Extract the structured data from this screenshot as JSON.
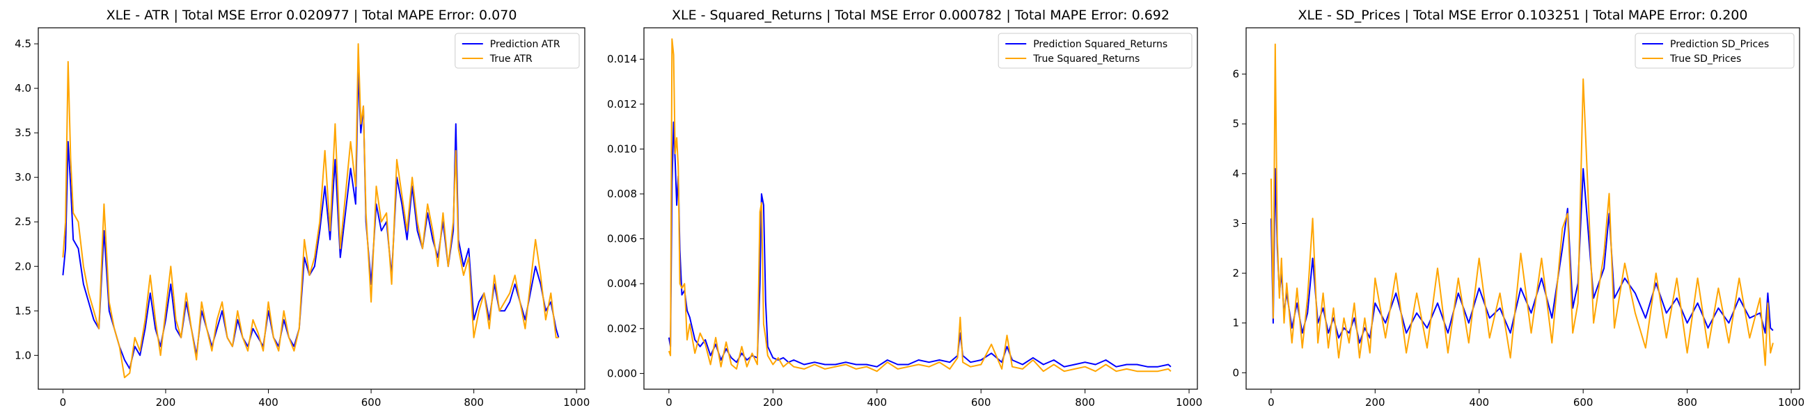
{
  "chart_data": [
    {
      "type": "line",
      "title": "XLE - ATR | Total MSE Error 0.020977 | Total MAPE Error: 0.070",
      "xlabel": "",
      "ylabel": "",
      "xlim": [
        -48,
        1016
      ],
      "ylim": [
        0.62,
        4.68
      ],
      "xticks": [
        0,
        200,
        400,
        600,
        800,
        1000
      ],
      "yticks": [
        1.0,
        1.5,
        2.0,
        2.5,
        3.0,
        3.5,
        4.0,
        4.5
      ],
      "ytick_format": "fixed1",
      "legend": "top-right",
      "grid": false,
      "series": [
        {
          "name": "Prediction ATR",
          "color": "#0000ff",
          "x": [
            0,
            5,
            10,
            15,
            20,
            30,
            40,
            50,
            60,
            70,
            80,
            90,
            100,
            110,
            120,
            130,
            140,
            150,
            160,
            170,
            180,
            190,
            200,
            210,
            220,
            230,
            240,
            250,
            260,
            270,
            280,
            290,
            300,
            310,
            320,
            330,
            340,
            350,
            360,
            370,
            380,
            390,
            400,
            410,
            420,
            430,
            440,
            450,
            460,
            470,
            480,
            490,
            500,
            510,
            520,
            530,
            540,
            550,
            560,
            570,
            575,
            580,
            585,
            590,
            600,
            610,
            620,
            630,
            640,
            650,
            660,
            670,
            680,
            690,
            700,
            710,
            720,
            730,
            740,
            750,
            760,
            765,
            770,
            780,
            790,
            800,
            810,
            820,
            830,
            840,
            850,
            860,
            870,
            880,
            890,
            900,
            910,
            920,
            930,
            940,
            950,
            960,
            965
          ],
          "y": [
            1.9,
            2.2,
            3.4,
            2.9,
            2.3,
            2.2,
            1.8,
            1.6,
            1.4,
            1.3,
            2.4,
            1.5,
            1.3,
            1.1,
            0.95,
            0.85,
            1.1,
            1.0,
            1.3,
            1.7,
            1.3,
            1.1,
            1.4,
            1.8,
            1.3,
            1.2,
            1.6,
            1.3,
            1.0,
            1.5,
            1.3,
            1.1,
            1.3,
            1.5,
            1.2,
            1.1,
            1.4,
            1.2,
            1.1,
            1.3,
            1.2,
            1.1,
            1.5,
            1.2,
            1.1,
            1.4,
            1.2,
            1.1,
            1.3,
            2.1,
            1.9,
            2.0,
            2.4,
            2.9,
            2.3,
            3.2,
            2.1,
            2.6,
            3.1,
            2.7,
            4.2,
            3.5,
            3.8,
            2.5,
            1.8,
            2.7,
            2.4,
            2.5,
            1.9,
            3.0,
            2.7,
            2.3,
            2.9,
            2.4,
            2.2,
            2.6,
            2.3,
            2.1,
            2.5,
            2.0,
            2.4,
            3.6,
            2.3,
            2.0,
            2.2,
            1.4,
            1.6,
            1.7,
            1.4,
            1.8,
            1.5,
            1.5,
            1.6,
            1.8,
            1.6,
            1.4,
            1.7,
            2.0,
            1.8,
            1.5,
            1.6,
            1.3,
            1.2
          ]
        },
        {
          "name": "True ATR",
          "color": "#ffa500",
          "x": [
            0,
            5,
            10,
            15,
            20,
            30,
            40,
            50,
            60,
            70,
            80,
            90,
            100,
            110,
            120,
            130,
            140,
            150,
            160,
            170,
            180,
            190,
            200,
            210,
            220,
            230,
            240,
            250,
            260,
            270,
            280,
            290,
            300,
            310,
            320,
            330,
            340,
            350,
            360,
            370,
            380,
            390,
            400,
            410,
            420,
            430,
            440,
            450,
            460,
            470,
            480,
            490,
            500,
            510,
            520,
            530,
            540,
            550,
            560,
            570,
            575,
            580,
            585,
            590,
            600,
            610,
            620,
            630,
            640,
            650,
            660,
            670,
            680,
            690,
            700,
            710,
            720,
            730,
            740,
            750,
            760,
            765,
            770,
            780,
            790,
            800,
            810,
            820,
            830,
            840,
            850,
            860,
            870,
            880,
            890,
            900,
            910,
            920,
            930,
            940,
            950,
            960,
            965
          ],
          "y": [
            2.1,
            2.5,
            4.3,
            3.2,
            2.6,
            2.5,
            2.0,
            1.7,
            1.5,
            1.3,
            2.7,
            1.6,
            1.3,
            1.1,
            0.75,
            0.8,
            1.2,
            1.05,
            1.4,
            1.9,
            1.4,
            1.0,
            1.5,
            2.0,
            1.4,
            1.2,
            1.7,
            1.3,
            0.95,
            1.6,
            1.3,
            1.05,
            1.4,
            1.6,
            1.2,
            1.1,
            1.5,
            1.2,
            1.05,
            1.4,
            1.25,
            1.05,
            1.6,
            1.2,
            1.05,
            1.5,
            1.2,
            1.05,
            1.3,
            2.3,
            1.9,
            2.1,
            2.5,
            3.3,
            2.4,
            3.6,
            2.2,
            2.8,
            3.4,
            2.9,
            4.5,
            3.6,
            3.8,
            2.6,
            1.6,
            2.9,
            2.5,
            2.6,
            1.8,
            3.2,
            2.8,
            2.4,
            3.0,
            2.5,
            2.2,
            2.7,
            2.4,
            2.0,
            2.6,
            2.0,
            2.5,
            3.3,
            2.2,
            1.9,
            2.1,
            1.2,
            1.5,
            1.7,
            1.3,
            1.9,
            1.5,
            1.6,
            1.7,
            1.9,
            1.6,
            1.3,
            1.8,
            2.3,
            1.9,
            1.4,
            1.7,
            1.2,
            1.2
          ]
        }
      ]
    },
    {
      "type": "line",
      "title": "XLE - Squared_Returns | Total MSE Error 0.000782 | Total MAPE Error: 0.692",
      "xlabel": "",
      "ylabel": "",
      "xlim": [
        -48,
        1016
      ],
      "ylim": [
        -0.0007,
        0.0154
      ],
      "xticks": [
        0,
        200,
        400,
        600,
        800,
        1000
      ],
      "yticks": [
        0.0,
        0.002,
        0.004,
        0.006,
        0.008,
        0.01,
        0.012,
        0.014
      ],
      "ytick_format": "fixed3",
      "legend": "top-right",
      "grid": false,
      "series": [
        {
          "name": "Prediction Squared_Returns",
          "color": "#0000ff",
          "x": [
            0,
            3,
            6,
            9,
            12,
            15,
            18,
            21,
            25,
            30,
            35,
            40,
            50,
            60,
            70,
            80,
            90,
            100,
            110,
            120,
            130,
            140,
            150,
            160,
            170,
            175,
            178,
            182,
            186,
            190,
            200,
            210,
            220,
            230,
            240,
            260,
            280,
            300,
            320,
            340,
            360,
            380,
            400,
            420,
            440,
            460,
            480,
            500,
            520,
            540,
            555,
            560,
            565,
            580,
            600,
            620,
            640,
            650,
            660,
            680,
            700,
            720,
            740,
            760,
            780,
            800,
            820,
            840,
            860,
            880,
            900,
            920,
            940,
            960,
            965
          ],
          "y": [
            0.0016,
            0.0012,
            0.0085,
            0.0112,
            0.0095,
            0.0075,
            0.0088,
            0.0055,
            0.0035,
            0.0037,
            0.0028,
            0.0025,
            0.0015,
            0.0012,
            0.0015,
            0.0008,
            0.0013,
            0.0006,
            0.0011,
            0.0007,
            0.0005,
            0.0009,
            0.0006,
            0.0008,
            0.0007,
            0.004,
            0.008,
            0.0075,
            0.0032,
            0.0012,
            0.0007,
            0.0006,
            0.0007,
            0.0005,
            0.0006,
            0.0004,
            0.0005,
            0.0004,
            0.0004,
            0.0005,
            0.0004,
            0.0004,
            0.0003,
            0.0006,
            0.0004,
            0.0004,
            0.0006,
            0.0005,
            0.0006,
            0.0005,
            0.0008,
            0.0018,
            0.0008,
            0.0005,
            0.0006,
            0.0009,
            0.0005,
            0.0012,
            0.0006,
            0.0004,
            0.0007,
            0.0004,
            0.0006,
            0.0003,
            0.0004,
            0.0005,
            0.0004,
            0.0006,
            0.0003,
            0.0004,
            0.0004,
            0.0003,
            0.0003,
            0.0004,
            0.0003
          ]
        },
        {
          "name": "True Squared_Returns",
          "color": "#ffa500",
          "x": [
            0,
            3,
            6,
            9,
            12,
            15,
            18,
            21,
            25,
            30,
            35,
            40,
            50,
            60,
            70,
            80,
            90,
            100,
            110,
            120,
            130,
            140,
            150,
            160,
            170,
            175,
            178,
            182,
            186,
            190,
            200,
            210,
            220,
            230,
            240,
            260,
            280,
            300,
            320,
            340,
            360,
            380,
            400,
            420,
            440,
            460,
            480,
            500,
            520,
            540,
            555,
            560,
            565,
            580,
            600,
            620,
            640,
            650,
            660,
            680,
            700,
            720,
            740,
            760,
            780,
            800,
            820,
            840,
            860,
            880,
            900,
            920,
            940,
            960,
            965
          ],
          "y": [
            0.001,
            0.0008,
            0.0149,
            0.0142,
            0.0098,
            0.0105,
            0.0092,
            0.004,
            0.0038,
            0.004,
            0.0015,
            0.0022,
            0.0009,
            0.0018,
            0.0013,
            0.0004,
            0.0016,
            0.0003,
            0.0014,
            0.0004,
            0.0002,
            0.0012,
            0.0003,
            0.0009,
            0.0004,
            0.0072,
            0.0076,
            0.0022,
            0.0016,
            0.0008,
            0.0004,
            0.0007,
            0.0003,
            0.0005,
            0.0003,
            0.0002,
            0.0004,
            0.0002,
            0.0003,
            0.0004,
            0.0002,
            0.0003,
            0.0001,
            0.0005,
            0.0002,
            0.0003,
            0.0004,
            0.0003,
            0.0005,
            0.0002,
            0.0007,
            0.0025,
            0.0005,
            0.0003,
            0.0004,
            0.0013,
            0.0002,
            0.0017,
            0.0003,
            0.0002,
            0.0006,
            0.0001,
            0.0004,
            0.0001,
            0.0002,
            0.0003,
            0.0001,
            0.0004,
            0.0001,
            0.0002,
            0.0001,
            0.0001,
            0.0001,
            0.0002,
            0.0001
          ]
        }
      ]
    },
    {
      "type": "line",
      "title": "XLE - SD_Prices | Total MSE Error 0.103251 | Total MAPE Error: 0.200",
      "xlabel": "",
      "ylabel": "",
      "xlim": [
        -48,
        1016
      ],
      "ylim": [
        -0.33,
        6.93
      ],
      "xticks": [
        0,
        200,
        400,
        600,
        800,
        1000
      ],
      "yticks": [
        0,
        1,
        2,
        3,
        4,
        5,
        6
      ],
      "ytick_format": "int",
      "legend": "top-right",
      "grid": false,
      "series": [
        {
          "name": "Prediction SD_Prices",
          "color": "#0000ff",
          "x": [
            0,
            4,
            8,
            12,
            16,
            20,
            25,
            30,
            40,
            50,
            60,
            70,
            80,
            90,
            100,
            110,
            120,
            130,
            140,
            150,
            160,
            170,
            180,
            190,
            200,
            220,
            240,
            260,
            280,
            300,
            320,
            340,
            360,
            380,
            400,
            420,
            440,
            460,
            480,
            500,
            520,
            540,
            560,
            570,
            580,
            590,
            600,
            620,
            640,
            650,
            660,
            680,
            700,
            720,
            740,
            760,
            780,
            800,
            820,
            840,
            860,
            880,
            900,
            920,
            940,
            950,
            955,
            960,
            965
          ],
          "y": [
            3.1,
            1.0,
            4.1,
            2.5,
            1.6,
            2.0,
            1.2,
            1.6,
            0.9,
            1.4,
            0.8,
            1.2,
            2.3,
            1.0,
            1.3,
            0.8,
            1.1,
            0.7,
            0.9,
            0.8,
            1.1,
            0.6,
            0.9,
            0.7,
            1.4,
            1.0,
            1.6,
            0.8,
            1.2,
            0.9,
            1.4,
            0.8,
            1.6,
            1.0,
            1.7,
            1.1,
            1.3,
            0.8,
            1.7,
            1.2,
            1.9,
            1.1,
            2.5,
            3.3,
            1.3,
            1.8,
            4.1,
            1.5,
            2.1,
            3.2,
            1.5,
            1.9,
            1.6,
            1.1,
            1.8,
            1.2,
            1.5,
            1.0,
            1.4,
            0.9,
            1.3,
            1.0,
            1.5,
            1.1,
            1.2,
            0.8,
            1.6,
            0.9,
            0.85
          ]
        },
        {
          "name": "True SD_Prices",
          "color": "#ffa500",
          "x": [
            0,
            4,
            8,
            12,
            16,
            20,
            25,
            30,
            40,
            50,
            60,
            70,
            80,
            90,
            100,
            110,
            120,
            130,
            140,
            150,
            160,
            170,
            180,
            190,
            200,
            220,
            240,
            260,
            280,
            300,
            320,
            340,
            360,
            380,
            400,
            420,
            440,
            460,
            480,
            500,
            520,
            540,
            560,
            570,
            580,
            590,
            600,
            620,
            640,
            650,
            660,
            680,
            700,
            720,
            740,
            760,
            780,
            800,
            820,
            840,
            860,
            880,
            900,
            920,
            940,
            950,
            955,
            960,
            965
          ],
          "y": [
            3.9,
            1.1,
            6.6,
            2.7,
            1.5,
            2.3,
            1.0,
            1.8,
            0.6,
            1.7,
            0.5,
            1.5,
            3.1,
            0.6,
            1.6,
            0.5,
            1.3,
            0.3,
            1.1,
            0.6,
            1.4,
            0.3,
            1.1,
            0.4,
            1.9,
            0.7,
            2.0,
            0.4,
            1.6,
            0.5,
            2.1,
            0.4,
            1.9,
            0.6,
            2.3,
            0.7,
            1.6,
            0.3,
            2.4,
            0.8,
            2.3,
            0.6,
            2.9,
            3.2,
            0.8,
            1.4,
            5.9,
            1.0,
            2.4,
            3.6,
            0.9,
            2.2,
            1.2,
            0.5,
            2.0,
            0.7,
            1.9,
            0.4,
            1.9,
            0.5,
            1.7,
            0.6,
            1.9,
            0.7,
            1.5,
            0.15,
            1.4,
            0.4,
            0.6
          ]
        }
      ]
    }
  ]
}
